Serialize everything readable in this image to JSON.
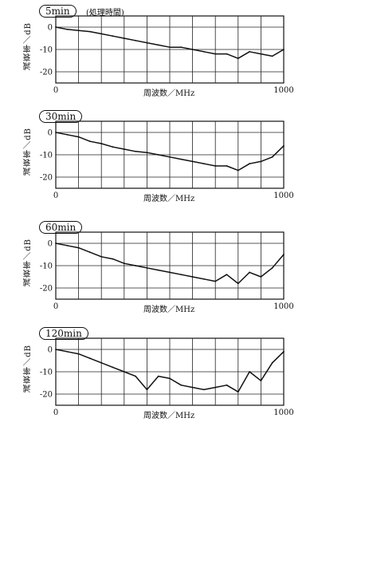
{
  "figure_note": "(処理時間)",
  "chart_data": [
    {
      "type": "line",
      "tag": "5min",
      "xlabel": "周波数／MHz",
      "ylabel": "減衰率／dB",
      "xlim": [
        0,
        1000
      ],
      "ylim": [
        -25,
        5
      ],
      "x_tick_labels": [
        "0",
        "1000"
      ],
      "y_tick_labels": [
        "0",
        "-10",
        "-20"
      ],
      "y_tick_values": [
        0,
        -10,
        -20
      ],
      "grid": true,
      "x": [
        0,
        50,
        100,
        150,
        200,
        250,
        300,
        350,
        400,
        450,
        500,
        550,
        600,
        650,
        700,
        750,
        800,
        850,
        900,
        950,
        1000
      ],
      "y": [
        0,
        -1,
        -1.5,
        -2,
        -3,
        -4,
        -5,
        -6,
        -7,
        -8,
        -9,
        -9,
        -10,
        -11,
        -12,
        -12,
        -14,
        -11,
        -12,
        -13,
        -10
      ]
    },
    {
      "type": "line",
      "tag": "30min",
      "xlabel": "周波数／MHz",
      "ylabel": "減衰率／dB",
      "xlim": [
        0,
        1000
      ],
      "ylim": [
        -25,
        5
      ],
      "x_tick_labels": [
        "0",
        "1000"
      ],
      "y_tick_labels": [
        "0",
        "-10",
        "-20"
      ],
      "y_tick_values": [
        0,
        -10,
        -20
      ],
      "grid": true,
      "x": [
        0,
        50,
        100,
        150,
        200,
        250,
        300,
        350,
        400,
        450,
        500,
        550,
        600,
        650,
        700,
        750,
        800,
        850,
        900,
        950,
        1000
      ],
      "y": [
        0,
        -1,
        -2,
        -4,
        -5,
        -6.5,
        -7.5,
        -8.5,
        -9,
        -10,
        -11,
        -12,
        -13,
        -14,
        -15,
        -15,
        -17,
        -14,
        -13,
        -11,
        -6
      ]
    },
    {
      "type": "line",
      "tag": "60min",
      "xlabel": "周波数／MHz",
      "ylabel": "減衰率／dB",
      "xlim": [
        0,
        1000
      ],
      "ylim": [
        -25,
        5
      ],
      "x_tick_labels": [
        "0",
        "1000"
      ],
      "y_tick_labels": [
        "0",
        "-10",
        "-20"
      ],
      "y_tick_values": [
        0,
        -10,
        -20
      ],
      "grid": true,
      "x": [
        0,
        50,
        100,
        150,
        200,
        250,
        300,
        350,
        400,
        450,
        500,
        550,
        600,
        650,
        700,
        750,
        800,
        850,
        900,
        950,
        1000
      ],
      "y": [
        0,
        -1,
        -2,
        -4,
        -6,
        -7,
        -9,
        -10,
        -11,
        -12,
        -13,
        -14,
        -15,
        -16,
        -17,
        -14,
        -18,
        -13,
        -15,
        -11,
        -5
      ]
    },
    {
      "type": "line",
      "tag": "120min",
      "xlabel": "周波数／MHz",
      "ylabel": "減衰率／dB",
      "xlim": [
        0,
        1000
      ],
      "ylim": [
        -25,
        5
      ],
      "x_tick_labels": [
        "0",
        "1000"
      ],
      "y_tick_labels": [
        "0",
        "-10",
        "-20"
      ],
      "y_tick_values": [
        0,
        -10,
        -20
      ],
      "grid": true,
      "x": [
        0,
        50,
        100,
        150,
        200,
        250,
        300,
        350,
        400,
        450,
        500,
        550,
        600,
        650,
        700,
        750,
        800,
        850,
        900,
        950,
        1000
      ],
      "y": [
        0,
        -1,
        -2,
        -4,
        -6,
        -8,
        -10,
        -12,
        -18,
        -12,
        -13,
        -16,
        -17,
        -18,
        -17,
        -16,
        -19,
        -10,
        -14,
        -6,
        -1
      ]
    }
  ]
}
